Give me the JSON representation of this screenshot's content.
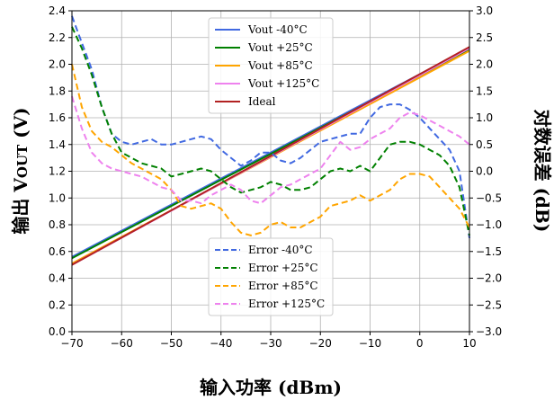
{
  "chart_data": {
    "type": "line",
    "xlabel": "输入功率 (dBm)",
    "ylabel_left_main": "输出 V",
    "ylabel_left_sub": "OUT",
    "ylabel_left_unit": " (V)",
    "ylabel_right": "对数误差 (dB)",
    "xlim": [
      -70,
      10
    ],
    "ylim_left": [
      0.0,
      2.4
    ],
    "ylim_right": [
      -3.0,
      3.0
    ],
    "x_ticks": [
      -70,
      -60,
      -50,
      -40,
      -30,
      -20,
      -10,
      0,
      10
    ],
    "x_tick_labels": [
      "−70",
      "−60",
      "−50",
      "−40",
      "−30",
      "−20",
      "−10",
      "0",
      "10"
    ],
    "y_left_ticks": [
      0.0,
      0.2,
      0.4,
      0.6,
      0.8,
      1.0,
      1.2,
      1.4,
      1.6,
      1.8,
      2.0,
      2.2,
      2.4
    ],
    "y_left_tick_labels": [
      "0.0",
      "0.2",
      "0.4",
      "0.6",
      "0.8",
      "1.0",
      "1.2",
      "1.4",
      "1.6",
      "1.8",
      "2.0",
      "2.2",
      "2.4"
    ],
    "y_right_ticks": [
      -3.0,
      -2.5,
      -2.0,
      -1.5,
      -1.0,
      -0.5,
      0.0,
      0.5,
      1.0,
      1.5,
      2.0,
      2.5,
      3.0
    ],
    "y_right_tick_labels": [
      "−3.0",
      "−2.5",
      "−2.0",
      "−1.5",
      "−1.0",
      "−0.5",
      "0.0",
      "0.5",
      "1.0",
      "1.5",
      "2.0",
      "2.5",
      "3.0"
    ],
    "grid": true,
    "legend_vout_placement": "upper-center",
    "legend_error_placement": "lower-center",
    "vout_series": [
      {
        "name": "Vout  -40°C",
        "color": "#4169e1",
        "x": [
          -70,
          10
        ],
        "y": [
          0.56,
          2.12
        ]
      },
      {
        "name": "Vout +25°C",
        "color": "#008000",
        "x": [
          -70,
          10
        ],
        "y": [
          0.55,
          2.11
        ]
      },
      {
        "name": "Vout +85°C",
        "color": "#ffa500",
        "x": [
          -70,
          10
        ],
        "y": [
          0.51,
          2.1
        ]
      },
      {
        "name": "Vout +125°C",
        "color": "#ee82ee",
        "x": [
          -70,
          10
        ],
        "y": [
          0.5,
          2.12
        ]
      },
      {
        "name": "Ideal",
        "color": "#b22222",
        "x": [
          -70,
          10
        ],
        "y": [
          0.5,
          2.13
        ]
      }
    ],
    "error_series": [
      {
        "name": "Error  -40°C",
        "color": "#4169e1",
        "x": [
          -70,
          -68,
          -66,
          -64,
          -62,
          -60,
          -58,
          -56,
          -54,
          -52,
          -50,
          -48,
          -46,
          -44,
          -42,
          -40,
          -38,
          -36,
          -34,
          -32,
          -30,
          -28,
          -26,
          -24,
          -22,
          -20,
          -18,
          -16,
          -14,
          -12,
          -10,
          -8,
          -6,
          -4,
          -2,
          0,
          2,
          4,
          6,
          8,
          10
        ],
        "y": [
          2.9,
          2.4,
          1.9,
          1.2,
          0.7,
          0.55,
          0.5,
          0.55,
          0.6,
          0.5,
          0.5,
          0.55,
          0.6,
          0.65,
          0.6,
          0.4,
          0.25,
          0.1,
          0.2,
          0.35,
          0.35,
          0.2,
          0.15,
          0.25,
          0.4,
          0.55,
          0.6,
          0.65,
          0.7,
          0.7,
          1.0,
          1.2,
          1.25,
          1.25,
          1.15,
          1.0,
          0.8,
          0.6,
          0.4,
          0.0,
          -1.25
        ]
      },
      {
        "name": "Error +25°C",
        "color": "#008000",
        "x": [
          -70,
          -68,
          -66,
          -64,
          -62,
          -60,
          -58,
          -56,
          -54,
          -52,
          -50,
          -48,
          -46,
          -44,
          -42,
          -40,
          -38,
          -36,
          -34,
          -32,
          -30,
          -28,
          -26,
          -24,
          -22,
          -20,
          -18,
          -16,
          -14,
          -12,
          -10,
          -8,
          -6,
          -4,
          -2,
          0,
          2,
          4,
          6,
          8,
          10
        ],
        "y": [
          2.7,
          2.3,
          1.8,
          1.2,
          0.7,
          0.35,
          0.25,
          0.15,
          0.1,
          0.05,
          -0.1,
          -0.05,
          0.0,
          0.05,
          0.0,
          -0.15,
          -0.3,
          -0.4,
          -0.35,
          -0.3,
          -0.2,
          -0.25,
          -0.35,
          -0.35,
          -0.3,
          -0.15,
          0.0,
          0.05,
          0.0,
          0.1,
          0.0,
          0.25,
          0.5,
          0.55,
          0.55,
          0.5,
          0.4,
          0.3,
          0.1,
          -0.3,
          -1.2
        ]
      },
      {
        "name": "Error +85°C",
        "color": "#ffa500",
        "x": [
          -70,
          -68,
          -66,
          -64,
          -62,
          -60,
          -58,
          -56,
          -54,
          -52,
          -50,
          -48,
          -46,
          -44,
          -42,
          -40,
          -38,
          -36,
          -34,
          -32,
          -30,
          -28,
          -26,
          -24,
          -22,
          -20,
          -18,
          -16,
          -14,
          -12,
          -10,
          -8,
          -6,
          -4,
          -2,
          0,
          2,
          4,
          6,
          8,
          10
        ],
        "y": [
          2.0,
          1.2,
          0.75,
          0.55,
          0.45,
          0.3,
          0.15,
          0.05,
          -0.05,
          -0.15,
          -0.35,
          -0.65,
          -0.7,
          -0.65,
          -0.6,
          -0.7,
          -0.95,
          -1.15,
          -1.2,
          -1.15,
          -1.0,
          -0.95,
          -1.05,
          -1.05,
          -0.95,
          -0.85,
          -0.65,
          -0.6,
          -0.55,
          -0.45,
          -0.55,
          -0.45,
          -0.35,
          -0.15,
          -0.05,
          -0.05,
          -0.1,
          -0.3,
          -0.5,
          -0.7,
          -1.05
        ]
      },
      {
        "name": "Error +125°C",
        "color": "#ee82ee",
        "x": [
          -70,
          -68,
          -66,
          -64,
          -62,
          -60,
          -58,
          -56,
          -54,
          -52,
          -50,
          -48,
          -46,
          -44,
          -42,
          -40,
          -38,
          -36,
          -34,
          -32,
          -30,
          -28,
          -26,
          -24,
          -22,
          -20,
          -18,
          -16,
          -14,
          -12,
          -10,
          -8,
          -6,
          -4,
          -2,
          0,
          2,
          4,
          6,
          8,
          10
        ],
        "y": [
          1.4,
          0.8,
          0.35,
          0.15,
          0.05,
          0.0,
          -0.05,
          -0.1,
          -0.2,
          -0.3,
          -0.35,
          -0.55,
          -0.55,
          -0.6,
          -0.45,
          -0.35,
          -0.25,
          -0.35,
          -0.55,
          -0.6,
          -0.45,
          -0.3,
          -0.25,
          -0.15,
          -0.05,
          0.05,
          0.3,
          0.55,
          0.4,
          0.45,
          0.6,
          0.7,
          0.8,
          1.0,
          1.1,
          1.05,
          0.95,
          0.85,
          0.75,
          0.65,
          0.5
        ]
      }
    ]
  }
}
